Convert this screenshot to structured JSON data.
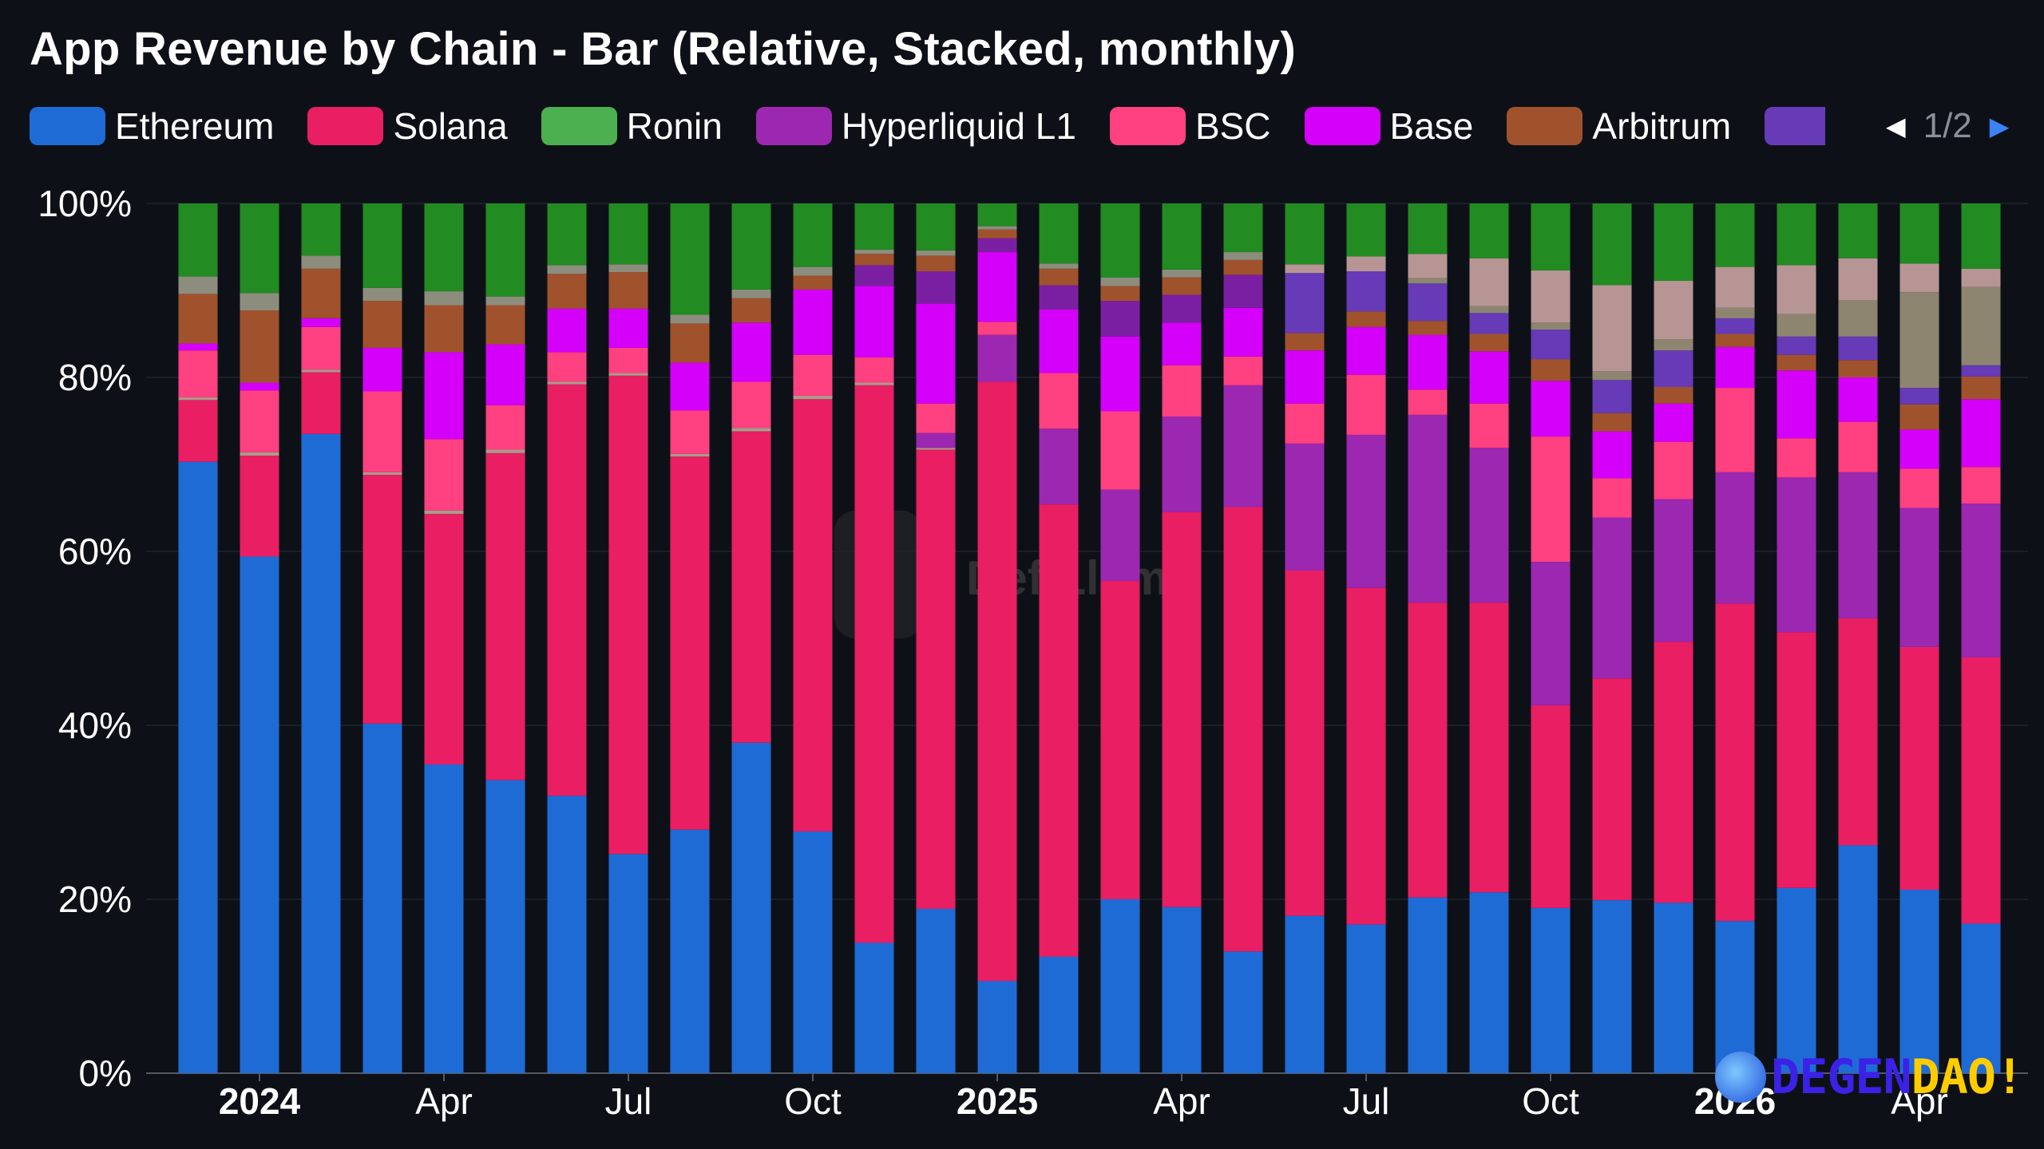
{
  "title": "App Revenue by Chain - Bar (Relative, Stacked, monthly)",
  "legend": {
    "items": [
      {
        "label": "Ethereum",
        "color": "#1f6bd6"
      },
      {
        "label": "Solana",
        "color": "#e91e63"
      },
      {
        "label": "Ronin",
        "color": "#4caf50"
      },
      {
        "label": "Hyperliquid L1",
        "color": "#9c27b0"
      },
      {
        "label": "BSC",
        "color": "#ff4081"
      },
      {
        "label": "Base",
        "color": "#d500f9"
      },
      {
        "label": "Arbitrum",
        "color": "#a0522d"
      }
    ],
    "partial_color": "#673ab7",
    "page": "1/2",
    "prev_icon": "triangle-left",
    "next_icon": "triangle-right"
  },
  "watermark": "DefiLlama",
  "brand": {
    "part1": "DEGEN",
    "part2": "DAO!"
  },
  "chart_data": {
    "type": "bar",
    "stacked": true,
    "relative": true,
    "y_ticks": [
      "0%",
      "20%",
      "40%",
      "60%",
      "80%",
      "100%"
    ],
    "x_labels": [
      {
        "index": 1,
        "label": "2024",
        "bold": true
      },
      {
        "index": 4,
        "label": "Apr",
        "bold": false
      },
      {
        "index": 7,
        "label": "Jul",
        "bold": false
      },
      {
        "index": 10,
        "label": "Oct",
        "bold": false
      },
      {
        "index": 13,
        "label": "2025",
        "bold": true
      },
      {
        "index": 16,
        "label": "Apr",
        "bold": false
      },
      {
        "index": 19,
        "label": "Jul",
        "bold": false
      },
      {
        "index": 22,
        "label": "Oct",
        "bold": false
      },
      {
        "index": 25,
        "label": "2026",
        "bold": true
      },
      {
        "index": 28,
        "label": "Apr",
        "bold": false
      }
    ],
    "ylim": [
      0,
      100
    ],
    "series_order": [
      "Ethereum",
      "Solana",
      "Other1",
      "Hyperliquid L1",
      "BSC",
      "Base",
      "Other2",
      "Arbitrum",
      "Other3",
      "Other4",
      "Other5",
      "Other6",
      "Ronin"
    ],
    "colors": {
      "Ethereum": "#1f6bd6",
      "Solana": "#e91e63",
      "Other1": "#ad9a8a",
      "Hyperliquid L1": "#9c27b0",
      "BSC": "#ff4081",
      "Base": "#d500f9",
      "Other2": "#7b1fa2",
      "Arbitrum": "#a0522d",
      "Other3": "#673ab7",
      "Other4": "#8d8570",
      "Other5": "#b79595",
      "Other6": "#8d8d7e",
      "Ronin": "#228b22"
    },
    "bars": [
      {
        "Ethereum": 70.3,
        "Solana": 7.1,
        "Other1": 0.3,
        "BSC": 5.4,
        "Base": 0.8,
        "Arbitrum": 5.7,
        "Other6": 2.0,
        "Ronin": 8.4
      },
      {
        "Ethereum": 59.4,
        "Solana": 11.6,
        "Other1": 0.4,
        "BSC": 7.1,
        "Base": 0.9,
        "Arbitrum": 8.3,
        "Other6": 2.0,
        "Ronin": 10.3
      },
      {
        "Ethereum": 73.5,
        "Solana": 7.1,
        "Other1": 0.3,
        "BSC": 4.9,
        "Base": 1.0,
        "Arbitrum": 5.7,
        "Other6": 1.5,
        "Ronin": 6.0
      },
      {
        "Ethereum": 40.2,
        "Solana": 28.6,
        "Other1": 0.3,
        "BSC": 9.3,
        "Base": 5.0,
        "Arbitrum": 5.4,
        "Other6": 1.5,
        "Ronin": 9.7
      },
      {
        "Ethereum": 35.5,
        "Solana": 28.8,
        "Other1": 0.4,
        "BSC": 8.2,
        "Base": 10.0,
        "Arbitrum": 5.4,
        "Other6": 1.6,
        "Ronin": 10.1
      },
      {
        "Ethereum": 33.7,
        "Solana": 37.6,
        "Other1": 0.4,
        "BSC": 5.1,
        "Base": 7.0,
        "Arbitrum": 4.5,
        "Other6": 1.0,
        "Ronin": 10.7
      },
      {
        "Ethereum": 31.9,
        "Solana": 47.3,
        "Other1": 0.3,
        "BSC": 3.4,
        "Base": 5.0,
        "Arbitrum": 4.0,
        "Other6": 1.0,
        "Ronin": 7.1
      },
      {
        "Ethereum": 25.2,
        "Solana": 55.0,
        "Other1": 0.3,
        "BSC": 2.9,
        "Base": 4.5,
        "Arbitrum": 4.2,
        "Other6": 0.9,
        "Ronin": 7.0
      },
      {
        "Ethereum": 28.0,
        "Solana": 42.9,
        "Other1": 0.3,
        "BSC": 5.0,
        "Base": 5.5,
        "Arbitrum": 4.5,
        "Other6": 1.0,
        "Ronin": 12.8
      },
      {
        "Ethereum": 38.0,
        "Solana": 35.8,
        "Other1": 0.4,
        "BSC": 5.3,
        "Base": 6.8,
        "Arbitrum": 2.8,
        "Other6": 1.0,
        "Ronin": 9.9
      },
      {
        "Ethereum": 27.8,
        "Solana": 49.7,
        "Other1": 0.4,
        "BSC": 4.7,
        "Base": 7.5,
        "Arbitrum": 1.6,
        "Other6": 1.0,
        "Ronin": 7.3
      },
      {
        "Ethereum": 15.0,
        "Solana": 64.1,
        "Other1": 0.3,
        "BSC": 2.9,
        "Base": 8.2,
        "Other2": 2.4,
        "Arbitrum": 1.3,
        "Other6": 0.5,
        "Ronin": 5.3
      },
      {
        "Ethereum": 18.9,
        "Solana": 52.8,
        "Other1": 0.2,
        "Hyperliquid L1": 1.7,
        "BSC": 3.4,
        "Base": 11.5,
        "Other2": 3.7,
        "Arbitrum": 1.8,
        "Other6": 0.6,
        "Ronin": 5.4
      },
      {
        "Ethereum": 10.6,
        "Solana": 68.9,
        "Hyperliquid L1": 5.4,
        "BSC": 1.5,
        "Base": 8.0,
        "Other2": 1.6,
        "Arbitrum": 1.0,
        "Other6": 0.4,
        "Ronin": 2.6
      },
      {
        "Ethereum": 13.4,
        "Solana": 52.0,
        "Hyperliquid L1": 8.7,
        "BSC": 6.4,
        "Base": 7.3,
        "Other2": 2.8,
        "Arbitrum": 1.9,
        "Other6": 0.6,
        "Ronin": 6.9
      },
      {
        "Ethereum": 20.0,
        "Solana": 36.6,
        "Hyperliquid L1": 10.5,
        "BSC": 9.0,
        "Base": 8.6,
        "Other2": 4.1,
        "Arbitrum": 1.7,
        "Other6": 1.0,
        "Ronin": 8.5
      },
      {
        "Ethereum": 19.1,
        "Solana": 45.4,
        "Hyperliquid L1": 11.0,
        "BSC": 5.9,
        "Base": 4.9,
        "Other2": 3.2,
        "Arbitrum": 2.0,
        "Other6": 0.9,
        "Ronin": 7.6
      },
      {
        "Ethereum": 14.0,
        "Solana": 51.1,
        "Hyperliquid L1": 14.0,
        "BSC": 3.3,
        "Base": 5.6,
        "Other2": 3.8,
        "Arbitrum": 1.7,
        "Other6": 0.9,
        "Ronin": 5.6
      },
      {
        "Ethereum": 18.1,
        "Solana": 39.7,
        "Hyperliquid L1": 14.6,
        "BSC": 4.6,
        "Base": 6.1,
        "Other3": 6.9,
        "Arbitrum": 2.0,
        "Other5": 1.0,
        "Ronin": 7.0
      },
      {
        "Ethereum": 17.1,
        "Solana": 38.7,
        "Hyperliquid L1": 17.6,
        "BSC": 6.9,
        "Base": 5.5,
        "Other3": 4.6,
        "Arbitrum": 1.8,
        "Other5": 1.7,
        "Ronin": 6.1
      },
      {
        "Ethereum": 20.2,
        "Solana": 33.9,
        "Hyperliquid L1": 21.6,
        "BSC": 2.9,
        "Base": 6.3,
        "Other3": 4.3,
        "Arbitrum": 1.6,
        "Other4": 0.6,
        "Other5": 2.8,
        "Ronin": 5.8
      },
      {
        "Ethereum": 20.8,
        "Solana": 33.3,
        "Hyperliquid L1": 17.8,
        "BSC": 5.1,
        "Base": 6.0,
        "Other3": 2.4,
        "Arbitrum": 2.0,
        "Other4": 0.8,
        "Other5": 5.5,
        "Ronin": 6.3
      },
      {
        "Ethereum": 19.0,
        "Solana": 23.3,
        "Hyperliquid L1": 16.5,
        "BSC": 14.4,
        "Base": 6.4,
        "Other3": 3.4,
        "Arbitrum": 2.5,
        "Other4": 0.8,
        "Other5": 6.0,
        "Ronin": 7.7
      },
      {
        "Ethereum": 19.9,
        "Solana": 25.5,
        "Hyperliquid L1": 18.5,
        "BSC": 4.5,
        "Base": 5.4,
        "Other3": 3.8,
        "Arbitrum": 2.1,
        "Other4": 1.0,
        "Other5": 9.9,
        "Ronin": 9.4
      },
      {
        "Ethereum": 19.6,
        "Solana": 30.0,
        "Hyperliquid L1": 16.4,
        "BSC": 6.6,
        "Base": 4.4,
        "Other3": 4.2,
        "Arbitrum": 1.9,
        "Other4": 1.3,
        "Other5": 6.7,
        "Ronin": 8.9
      },
      {
        "Ethereum": 17.5,
        "Solana": 36.5,
        "Hyperliquid L1": 15.1,
        "BSC": 9.7,
        "Base": 4.7,
        "Other3": 1.8,
        "Arbitrum": 1.5,
        "Other4": 1.2,
        "Other5": 4.7,
        "Ronin": 7.3
      },
      {
        "Ethereum": 21.3,
        "Solana": 29.4,
        "Hyperliquid L1": 17.8,
        "BSC": 4.5,
        "Base": 7.8,
        "Other3": 2.1,
        "Arbitrum": 1.8,
        "Other4": 2.6,
        "Other5": 5.6,
        "Ronin": 7.1
      },
      {
        "Ethereum": 26.2,
        "Solana": 26.1,
        "Hyperliquid L1": 16.8,
        "BSC": 5.8,
        "Base": 5.1,
        "Other3": 2.7,
        "Arbitrum": 2.0,
        "Other4": 4.2,
        "Other5": 4.8,
        "Ronin": 6.3
      },
      {
        "Ethereum": 21.1,
        "Solana": 27.9,
        "Hyperliquid L1": 16.0,
        "BSC": 4.5,
        "Base": 4.5,
        "Other3": 1.9,
        "Arbitrum": 2.9,
        "Other4": 11.0,
        "Other5": 3.3,
        "Ronin": 6.9
      },
      {
        "Ethereum": 17.2,
        "Solana": 30.6,
        "Hyperliquid L1": 17.7,
        "BSC": 4.2,
        "Base": 7.8,
        "Other3": 1.3,
        "Arbitrum": 2.6,
        "Other4": 9.0,
        "Other5": 2.1,
        "Ronin": 7.5
      }
    ]
  }
}
